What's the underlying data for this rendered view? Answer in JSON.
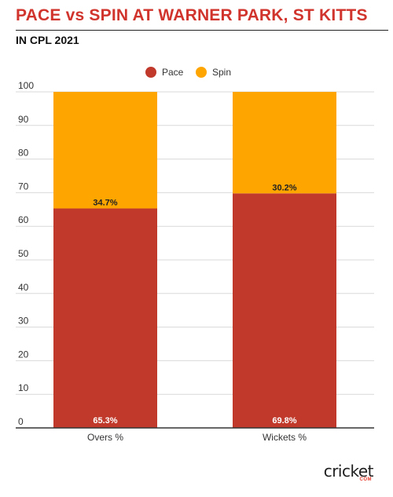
{
  "title": "PACE vs SPIN AT WARNER PARK, ST KITTS",
  "subtitle": "IN CPL 2021",
  "logo": {
    "text": "cricket",
    "sub": "COM"
  },
  "chart_data": {
    "type": "bar",
    "stacked": true,
    "categories": [
      "Overs %",
      "Wickets %"
    ],
    "series": [
      {
        "name": "Pace",
        "color": "#c0392b",
        "values": [
          65.3,
          69.8
        ],
        "labels": [
          "65.3%",
          "69.8%"
        ]
      },
      {
        "name": "Spin",
        "color": "#ffa500",
        "values": [
          34.7,
          30.2
        ],
        "labels": [
          "34.7%",
          "30.2%"
        ]
      }
    ],
    "ylim": [
      0,
      100
    ],
    "yticks": [
      0,
      10,
      20,
      30,
      40,
      50,
      60,
      70,
      80,
      90,
      100
    ],
    "grid": true,
    "legend": "top-center"
  }
}
